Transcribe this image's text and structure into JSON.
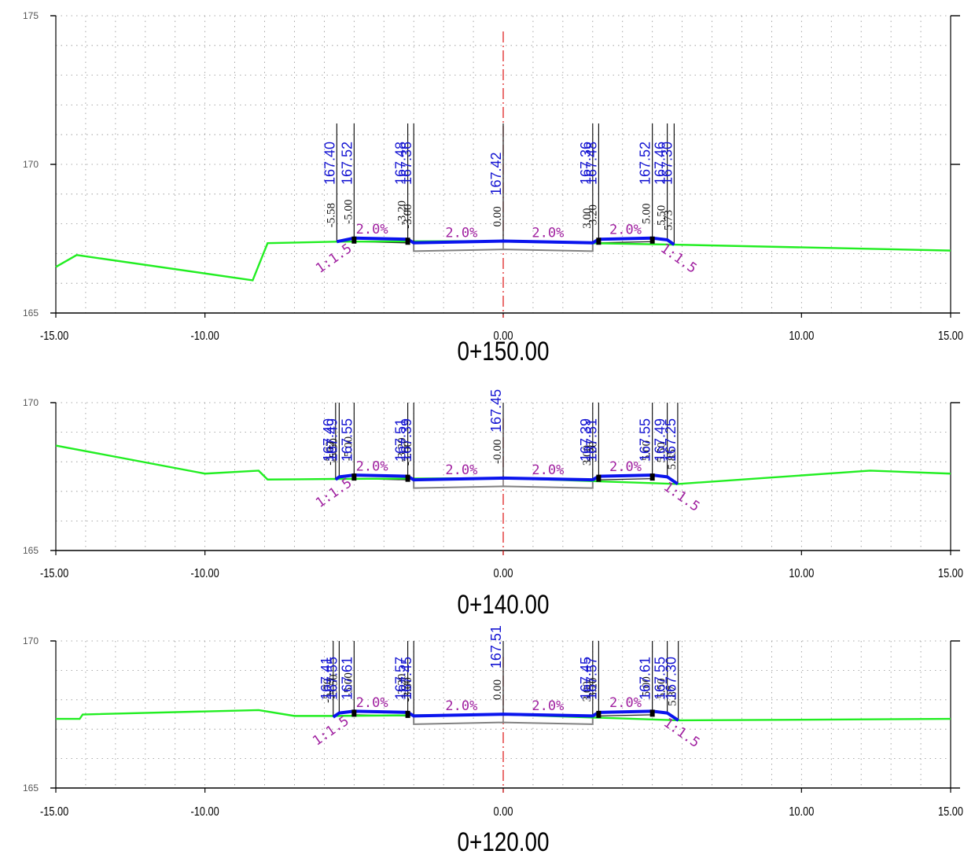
{
  "x_axis": {
    "range": [
      -15,
      15
    ],
    "ticks": [
      {
        "value": -15,
        "label": "-15.00"
      },
      {
        "value": -10,
        "label": "-10.00"
      },
      {
        "value": 0,
        "label": "0.00"
      },
      {
        "value": 10,
        "label": "10.00"
      },
      {
        "value": 15,
        "label": "15.00"
      }
    ]
  },
  "colors": {
    "ground": "#22ee22",
    "design": "#0a14ee",
    "elevation": "#1414d2",
    "offset": "#111111",
    "grade": "#a020a0",
    "centerline": "#dd1111",
    "subgrade": "#808080",
    "grid": "#909090"
  },
  "sections": [
    {
      "station": "0+150.00",
      "y_range": [
        165,
        175
      ],
      "y_ticks": [
        {
          "value": 175,
          "label": "175"
        },
        {
          "value": 170,
          "label": "170"
        },
        {
          "value": 165,
          "label": "165"
        }
      ],
      "ground": [
        [
          -15,
          166.55
        ],
        [
          -14.3,
          166.95
        ],
        [
          -8.4,
          166.1
        ],
        [
          -7.9,
          167.35
        ],
        [
          -5.58,
          167.4
        ],
        [
          -1,
          167.42
        ],
        [
          5.73,
          167.3
        ],
        [
          15,
          167.1
        ]
      ],
      "design": [
        [
          -5.58,
          167.4
        ],
        [
          -5.0,
          167.52
        ],
        [
          -3.2,
          167.48
        ],
        [
          -3.0,
          167.36
        ],
        [
          0,
          167.42
        ],
        [
          3.0,
          167.36
        ],
        [
          3.2,
          167.48
        ],
        [
          5.0,
          167.52
        ],
        [
          5.5,
          167.46
        ],
        [
          5.73,
          167.3
        ]
      ],
      "labels": [
        {
          "offset": -5.58,
          "offset_text": "-5.58",
          "elev_text": "167.40"
        },
        {
          "offset": -5.0,
          "offset_text": "-5.00",
          "elev_text": "167.52"
        },
        {
          "offset": -3.2,
          "offset_text": "-3.20",
          "elev_text": "167.48"
        },
        {
          "offset": -3.0,
          "offset_text": "-3.00",
          "elev_text": "167.36"
        },
        {
          "offset": 0.0,
          "offset_text": "0.00",
          "elev_text": "167.42"
        },
        {
          "offset": 3.0,
          "offset_text": "3.00",
          "elev_text": "167.36"
        },
        {
          "offset": 3.2,
          "offset_text": "3.20",
          "elev_text": "167.48"
        },
        {
          "offset": 5.0,
          "offset_text": "5.00",
          "elev_text": "167.52"
        },
        {
          "offset": 5.5,
          "offset_text": "5.50",
          "elev_text": "167.46"
        },
        {
          "offset": 5.73,
          "offset_text": "5.73",
          "elev_text": "167.30"
        }
      ],
      "grades": [
        {
          "x": -4.4,
          "text": "2.0%"
        },
        {
          "x": -1.4,
          "text": "2.0%"
        },
        {
          "x": 1.5,
          "text": "2.0%"
        },
        {
          "x": 4.1,
          "text": "2.0%"
        }
      ],
      "slopes": [
        {
          "x": -5.6,
          "text": "1:1.5",
          "side": "left"
        },
        {
          "x": 5.8,
          "text": "1:1.5",
          "side": "right"
        }
      ]
    },
    {
      "station": "0+140.00",
      "y_range": [
        165,
        170
      ],
      "y_ticks": [
        {
          "value": 170,
          "label": "170"
        },
        {
          "value": 165,
          "label": "165"
        }
      ],
      "ground": [
        [
          -15,
          168.55
        ],
        [
          -10,
          167.6
        ],
        [
          -8.2,
          167.7
        ],
        [
          -7.9,
          167.4
        ],
        [
          -5.62,
          167.42
        ],
        [
          0,
          167.45
        ],
        [
          5.85,
          167.25
        ],
        [
          12.3,
          167.7
        ],
        [
          15,
          167.6
        ]
      ],
      "design": [
        [
          -5.62,
          167.4
        ],
        [
          -5.5,
          167.49
        ],
        [
          -5.0,
          167.55
        ],
        [
          -3.2,
          167.51
        ],
        [
          -3.0,
          167.39
        ],
        [
          0,
          167.45
        ],
        [
          3.0,
          167.39
        ],
        [
          3.2,
          167.51
        ],
        [
          5.0,
          167.55
        ],
        [
          5.5,
          167.49
        ],
        [
          5.85,
          167.25
        ]
      ],
      "labels": [
        {
          "offset": -5.62,
          "offset_text": "-5.62",
          "elev_text": "167.40"
        },
        {
          "offset": -5.5,
          "offset_text": "-5.50",
          "elev_text": "167.49"
        },
        {
          "offset": -5.0,
          "offset_text": "-5.00",
          "elev_text": "167.55"
        },
        {
          "offset": -3.2,
          "offset_text": "-3.20",
          "elev_text": "167.51"
        },
        {
          "offset": -3.0,
          "offset_text": "-3.00",
          "elev_text": "167.39"
        },
        {
          "offset": 0.0,
          "offset_text": "-0.00",
          "elev_text": "167.45"
        },
        {
          "offset": 3.0,
          "offset_text": "3.00",
          "elev_text": "167.39"
        },
        {
          "offset": 3.2,
          "offset_text": "3.20",
          "elev_text": "167.51"
        },
        {
          "offset": 5.0,
          "offset_text": "5.00",
          "elev_text": "167.55"
        },
        {
          "offset": 5.5,
          "offset_text": "5.50",
          "elev_text": "167.49"
        },
        {
          "offset": 5.85,
          "offset_text": "5.85",
          "elev_text": "167.25"
        }
      ],
      "grades": [
        {
          "x": -4.4,
          "text": "2.0%"
        },
        {
          "x": -1.4,
          "text": "2.0%"
        },
        {
          "x": 1.5,
          "text": "2.0%"
        },
        {
          "x": 4.1,
          "text": "2.0%"
        }
      ],
      "slopes": [
        {
          "x": -5.6,
          "text": "1:1.5",
          "side": "left"
        },
        {
          "x": 5.9,
          "text": "1:1.5",
          "side": "right"
        }
      ]
    },
    {
      "station": "0+120.00",
      "y_range": [
        165,
        170
      ],
      "y_ticks": [
        {
          "value": 170,
          "label": "170"
        },
        {
          "value": 165,
          "label": "165"
        }
      ],
      "ground": [
        [
          -15,
          167.35
        ],
        [
          -14.2,
          167.35
        ],
        [
          -14.1,
          167.5
        ],
        [
          -8.2,
          167.65
        ],
        [
          -7.0,
          167.45
        ],
        [
          -5.7,
          167.45
        ],
        [
          0,
          167.5
        ],
        [
          5.87,
          167.3
        ],
        [
          15,
          167.35
        ]
      ],
      "design": [
        [
          -5.7,
          167.41
        ],
        [
          -5.5,
          167.55
        ],
        [
          -5.0,
          167.61
        ],
        [
          -3.2,
          167.57
        ],
        [
          -3.0,
          167.45
        ],
        [
          0,
          167.51
        ],
        [
          3.0,
          167.45
        ],
        [
          3.2,
          167.57
        ],
        [
          5.0,
          167.61
        ],
        [
          5.5,
          167.55
        ],
        [
          5.87,
          167.3
        ]
      ],
      "labels": [
        {
          "offset": -5.7,
          "offset_text": "-5.70",
          "elev_text": "167.41"
        },
        {
          "offset": -5.5,
          "offset_text": "-5.50",
          "elev_text": "167.55"
        },
        {
          "offset": -5.0,
          "offset_text": "-5.00",
          "elev_text": "167.61"
        },
        {
          "offset": -3.2,
          "offset_text": "-3.20",
          "elev_text": "167.57"
        },
        {
          "offset": -3.0,
          "offset_text": "-3.00",
          "elev_text": "167.45"
        },
        {
          "offset": 0.0,
          "offset_text": "0.00",
          "elev_text": "167.51"
        },
        {
          "offset": 3.0,
          "offset_text": "3.00",
          "elev_text": "167.45"
        },
        {
          "offset": 3.2,
          "offset_text": "3.20",
          "elev_text": "167.57"
        },
        {
          "offset": 5.0,
          "offset_text": "5.00",
          "elev_text": "167.61"
        },
        {
          "offset": 5.5,
          "offset_text": "5.50",
          "elev_text": "167.55"
        },
        {
          "offset": 5.87,
          "offset_text": "5.87",
          "elev_text": "167.30"
        }
      ],
      "grades": [
        {
          "x": -4.4,
          "text": "2.0%"
        },
        {
          "x": -1.4,
          "text": "2.0%"
        },
        {
          "x": 1.5,
          "text": "2.0%"
        },
        {
          "x": 4.1,
          "text": "2.0%"
        }
      ],
      "slopes": [
        {
          "x": -5.7,
          "text": "1:1.5",
          "side": "left"
        },
        {
          "x": 5.9,
          "text": "1:1.5",
          "side": "right"
        }
      ]
    }
  ]
}
